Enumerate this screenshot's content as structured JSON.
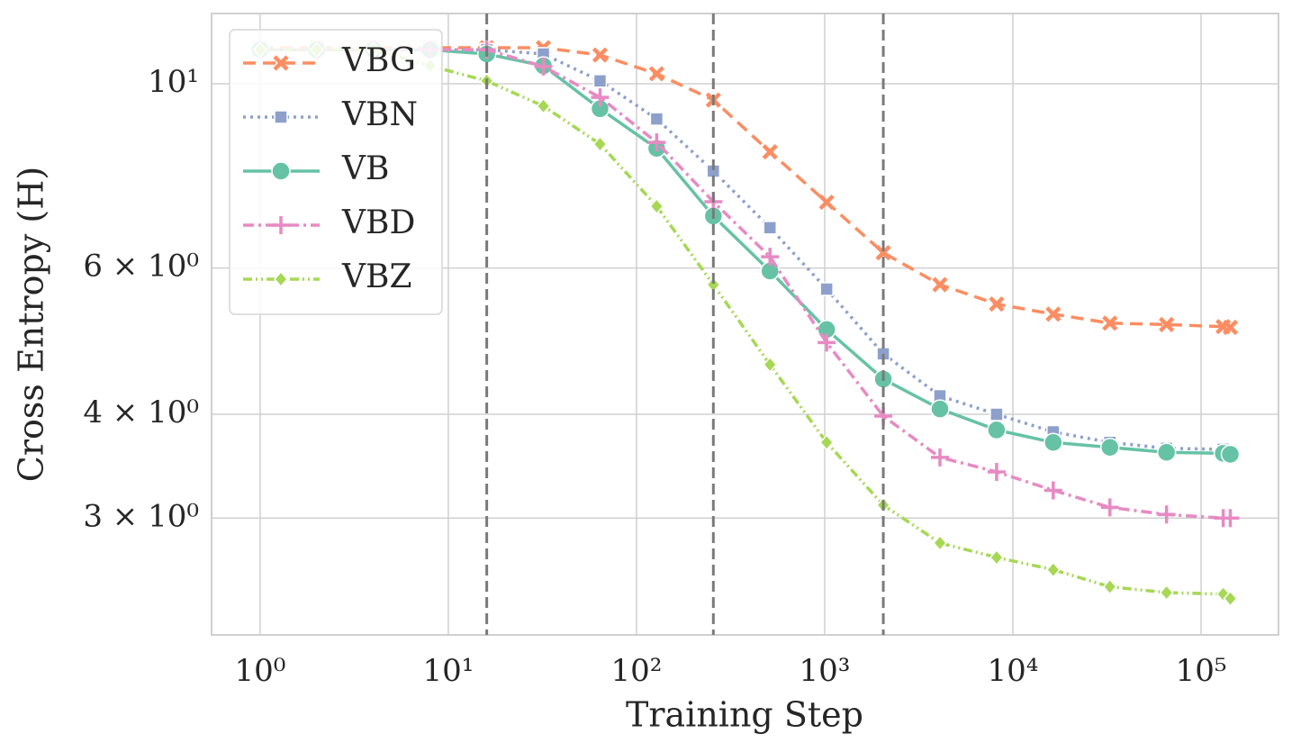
{
  "chart_data": {
    "type": "line",
    "xlabel": "Training Step",
    "ylabel": "Cross Entropy (H)",
    "xscale": "log",
    "yscale": "log",
    "grid": true,
    "legend": "upper left",
    "xlim": [
      0.552,
      257800
    ],
    "ylim": [
      2.17,
      12.15
    ],
    "xticks": [
      {
        "value": 1,
        "label": "10⁰"
      },
      {
        "value": 10,
        "label": "10¹"
      },
      {
        "value": 100,
        "label": "10²"
      },
      {
        "value": 1000,
        "label": "10³"
      },
      {
        "value": 10000,
        "label": "10⁴"
      },
      {
        "value": 100000,
        "label": "10⁵"
      }
    ],
    "yticks": [
      {
        "value": 3,
        "label": "3 × 10⁰"
      },
      {
        "value": 4,
        "label": "4 × 10⁰"
      },
      {
        "value": 6,
        "label": "6 × 10⁰"
      },
      {
        "value": 10,
        "label": "10¹"
      }
    ],
    "vlines": [
      16,
      256,
      2048
    ],
    "x": [
      1,
      2,
      4,
      8,
      16,
      32,
      64,
      128,
      256,
      512,
      1024,
      2048,
      4096,
      8192,
      16384,
      32768,
      65536,
      131072,
      143000
    ],
    "series": [
      {
        "name": "VBG",
        "color": "#fc8d62",
        "dash": "14,8",
        "marker": "x",
        "values": [
          11.05,
          11.05,
          11.05,
          11.05,
          11.05,
          11.05,
          10.83,
          10.28,
          9.56,
          8.28,
          7.2,
          6.26,
          5.73,
          5.43,
          5.28,
          5.15,
          5.13,
          5.1,
          5.09
        ]
      },
      {
        "name": "VBN",
        "color": "#8da0cb",
        "dash": "3,5",
        "marker": "square",
        "values": [
          10.99,
          10.99,
          10.99,
          10.99,
          10.99,
          10.86,
          10.08,
          9.07,
          7.85,
          6.71,
          5.66,
          4.73,
          4.21,
          4.0,
          3.81,
          3.7,
          3.64,
          3.63,
          3.61
        ]
      },
      {
        "name": "VB",
        "color": "#66c2a5",
        "dash": "none",
        "marker": "circle",
        "values": [
          10.99,
          10.99,
          10.99,
          10.99,
          10.86,
          10.51,
          9.33,
          8.36,
          6.93,
          5.95,
          5.06,
          4.41,
          4.06,
          3.83,
          3.7,
          3.65,
          3.6,
          3.59,
          3.58
        ]
      },
      {
        "name": "VBD",
        "color": "#e78ac3",
        "dash": "12,5,3,5",
        "marker": "plus",
        "values": [
          10.99,
          10.99,
          10.99,
          10.99,
          10.99,
          10.49,
          9.63,
          8.5,
          7.21,
          6.19,
          4.88,
          3.98,
          3.55,
          3.41,
          3.24,
          3.09,
          3.03,
          3.0,
          3.0
        ]
      },
      {
        "name": "VBZ",
        "color": "#a6d854",
        "dash": "10,4,2,4,2,4",
        "marker": "diamond",
        "values": [
          10.99,
          10.99,
          10.99,
          10.51,
          10.08,
          9.4,
          8.46,
          7.12,
          5.73,
          4.59,
          3.7,
          3.11,
          2.8,
          2.69,
          2.6,
          2.48,
          2.44,
          2.43,
          2.4
        ]
      }
    ]
  }
}
